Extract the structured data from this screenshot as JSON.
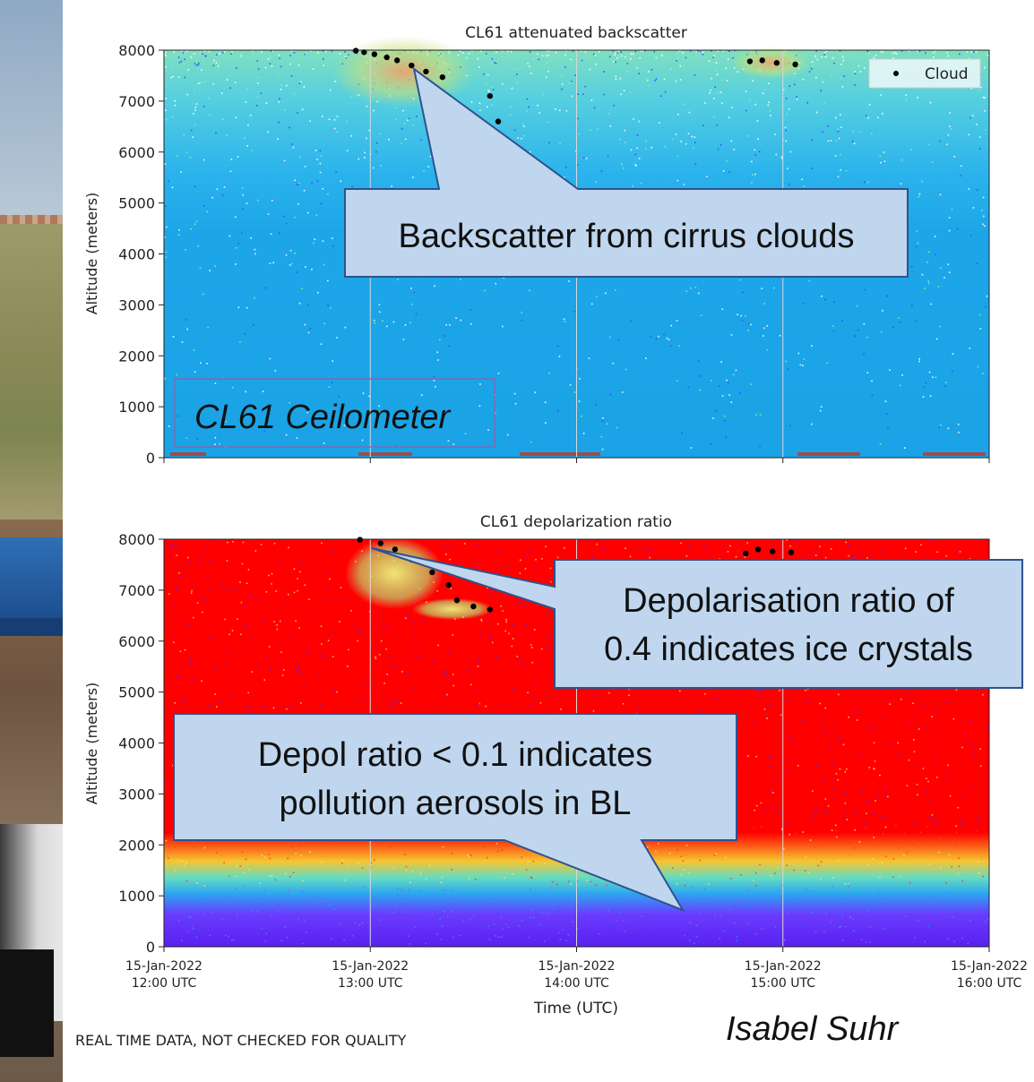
{
  "chart_data": [
    {
      "type": "heatmap",
      "title": "CL61 attenuated backscatter",
      "xlabel": "",
      "ylabel": "Altitude (meters)",
      "ylim": [
        0,
        8000
      ],
      "yticks": [
        0,
        1000,
        2000,
        3000,
        4000,
        5000,
        6000,
        7000,
        8000
      ],
      "xlim_hours_utc": [
        12,
        16
      ],
      "grid": "vertical lines",
      "legend": {
        "placement": "top-right",
        "entries": [
          "Cloud"
        ]
      },
      "cloud_points": [
        {
          "t": 12.93,
          "alt": 7990
        },
        {
          "t": 12.97,
          "alt": 7960
        },
        {
          "t": 13.02,
          "alt": 7920
        },
        {
          "t": 13.08,
          "alt": 7860
        },
        {
          "t": 13.13,
          "alt": 7800
        },
        {
          "t": 13.2,
          "alt": 7700
        },
        {
          "t": 13.27,
          "alt": 7580
        },
        {
          "t": 13.35,
          "alt": 7470
        },
        {
          "t": 13.58,
          "alt": 7100
        },
        {
          "t": 13.62,
          "alt": 6600
        },
        {
          "t": 14.84,
          "alt": 7780
        },
        {
          "t": 14.9,
          "alt": 7800
        },
        {
          "t": 14.97,
          "alt": 7750
        },
        {
          "t": 15.06,
          "alt": 7720
        }
      ]
    },
    {
      "type": "heatmap",
      "title": "CL61 depolarization ratio",
      "xlabel": "Time (UTC)",
      "ylabel": "Altitude (meters)",
      "ylim": [
        0,
        8000
      ],
      "yticks": [
        0,
        1000,
        2000,
        3000,
        4000,
        5000,
        6000,
        7000,
        8000
      ],
      "xticks": [
        {
          "t": 12,
          "line1": "15-Jan-2022",
          "line2": "12:00 UTC"
        },
        {
          "t": 13,
          "line1": "15-Jan-2022",
          "line2": "13:00 UTC"
        },
        {
          "t": 14,
          "line1": "15-Jan-2022",
          "line2": "14:00 UTC"
        },
        {
          "t": 15,
          "line1": "15-Jan-2022",
          "line2": "15:00 UTC"
        },
        {
          "t": 16,
          "line1": "15-Jan-2022",
          "line2": "16:00 UTC"
        }
      ],
      "grid": "vertical lines",
      "cloud_points": [
        {
          "t": 12.95,
          "alt": 7990
        },
        {
          "t": 13.05,
          "alt": 7920
        },
        {
          "t": 13.12,
          "alt": 7800
        },
        {
          "t": 13.2,
          "alt": 7600
        },
        {
          "t": 13.3,
          "alt": 7350
        },
        {
          "t": 13.38,
          "alt": 7100
        },
        {
          "t": 13.42,
          "alt": 6800
        },
        {
          "t": 13.5,
          "alt": 6680
        },
        {
          "t": 13.58,
          "alt": 6620
        },
        {
          "t": 14.82,
          "alt": 7720
        },
        {
          "t": 14.88,
          "alt": 7800
        },
        {
          "t": 14.95,
          "alt": 7760
        },
        {
          "t": 15.04,
          "alt": 7740
        }
      ]
    }
  ],
  "annotations": {
    "cirrus": "Backscatter from cirrus clouds",
    "ceilometer": "CL61 Ceilometer",
    "ice_line1": "Depolarisation ratio of",
    "ice_line2": "0.4 indicates ice crystals",
    "bl_line1": "Depol ratio < 0.1 indicates",
    "bl_line2": "pollution aerosols in BL"
  },
  "footer": "REAL TIME DATA, NOT CHECKED FOR QUALITY",
  "credit": "Isabel Suhr",
  "colors": {
    "backscatter_bg": "#1aa3e6",
    "backscatter_upper": "#6fd6c8",
    "depol_high": "#ff0000",
    "depol_low": "#5a2bff",
    "callout_fill": "#bfd6ee",
    "callout_stroke": "#2f528f",
    "cloud_marker": "#000000"
  }
}
